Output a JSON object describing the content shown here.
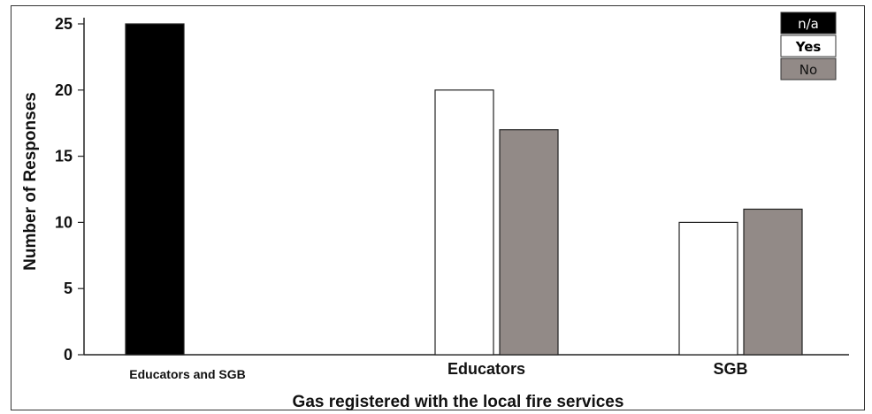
{
  "chart_data": {
    "type": "bar",
    "xlabel": "Gas registered with the local fire services",
    "ylabel": "Number of Responses",
    "ylim": [
      0,
      25
    ],
    "yticks": [
      "0",
      "5",
      "10",
      "15",
      "20",
      "25"
    ],
    "categories": [
      "Educators and SGB",
      "Educators",
      "SGB"
    ],
    "series": [
      {
        "name": "n/a",
        "color": "#000000",
        "values": [
          25,
          null,
          null
        ]
      },
      {
        "name": "Yes",
        "color": "#ffffff",
        "values": [
          null,
          20,
          10
        ]
      },
      {
        "name": "No",
        "color": "#928a87",
        "values": [
          null,
          17,
          11
        ]
      }
    ],
    "legend": {
      "position": "top-right"
    },
    "grid": false
  }
}
